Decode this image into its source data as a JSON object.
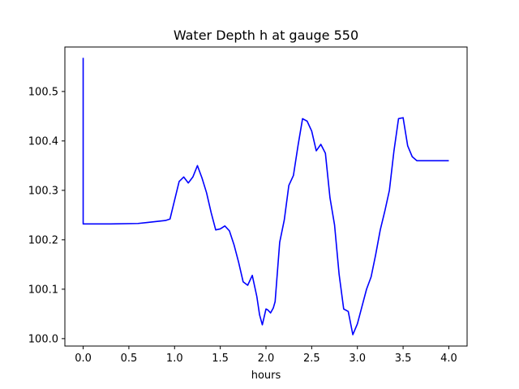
{
  "chart_data": {
    "type": "line",
    "title": "Water Depth h at gauge 550",
    "xlabel": "hours",
    "ylabel": "",
    "xlim": [
      -0.2,
      4.2
    ],
    "ylim": [
      99.985,
      100.59
    ],
    "xticks": [
      0.0,
      0.5,
      1.0,
      1.5,
      2.0,
      2.5,
      3.0,
      3.5,
      4.0
    ],
    "xtick_labels": [
      "0.0",
      "0.5",
      "1.0",
      "1.5",
      "2.0",
      "2.5",
      "3.0",
      "3.5",
      "4.0"
    ],
    "yticks": [
      100.0,
      100.1,
      100.2,
      100.3,
      100.4,
      100.5
    ],
    "ytick_labels": [
      "100.0",
      "100.1",
      "100.2",
      "100.3",
      "100.4",
      "100.5"
    ],
    "grid": false,
    "series": [
      {
        "color": "#0000ff",
        "x": [
          0.0,
          0.0,
          0.02,
          0.3,
          0.6,
          0.7,
          0.8,
          0.9,
          0.95,
          1.0,
          1.05,
          1.1,
          1.15,
          1.2,
          1.25,
          1.3,
          1.35,
          1.4,
          1.45,
          1.5,
          1.55,
          1.6,
          1.65,
          1.7,
          1.75,
          1.8,
          1.85,
          1.9,
          1.93,
          1.96,
          2.0,
          2.02,
          2.05,
          2.08,
          2.1,
          2.15,
          2.2,
          2.25,
          2.3,
          2.35,
          2.4,
          2.45,
          2.5,
          2.55,
          2.6,
          2.65,
          2.7,
          2.75,
          2.8,
          2.85,
          2.9,
          2.95,
          3.0,
          3.05,
          3.1,
          3.15,
          3.2,
          3.25,
          3.3,
          3.35,
          3.4,
          3.45,
          3.5,
          3.55,
          3.6,
          3.65,
          3.7,
          3.75,
          3.8,
          3.85,
          3.9,
          3.95,
          4.0
        ],
        "y": [
          100.568,
          100.232,
          100.232,
          100.232,
          100.233,
          100.235,
          100.237,
          100.239,
          100.242,
          100.28,
          100.318,
          100.327,
          100.315,
          100.327,
          100.35,
          100.325,
          100.295,
          100.255,
          100.22,
          100.222,
          100.228,
          100.218,
          100.19,
          100.155,
          100.115,
          100.108,
          100.128,
          100.085,
          100.048,
          100.028,
          100.06,
          100.058,
          100.052,
          100.062,
          100.075,
          100.195,
          100.24,
          100.31,
          100.33,
          100.39,
          100.445,
          100.44,
          100.42,
          100.38,
          100.393,
          100.375,
          100.285,
          100.23,
          100.13,
          100.06,
          100.055,
          100.008,
          100.03,
          100.065,
          100.1,
          100.125,
          100.17,
          100.22,
          100.258,
          100.3,
          100.38,
          100.445,
          100.447,
          100.39,
          100.368,
          100.36,
          100.36,
          100.36,
          100.36,
          100.36,
          100.36,
          100.36,
          100.36
        ]
      }
    ]
  }
}
